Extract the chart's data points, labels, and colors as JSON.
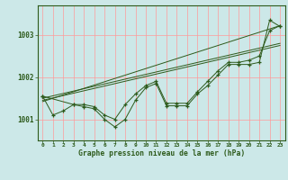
{
  "title": "Graphe pression niveau de la mer (hPa)",
  "bg_color": "#cce8e8",
  "grid_color": "#ff9999",
  "line_color": "#2d5a1b",
  "xlim": [
    -0.5,
    23.5
  ],
  "ylim": [
    1000.5,
    1003.7
  ],
  "yticks": [
    1001,
    1002,
    1003
  ],
  "xticks": [
    0,
    1,
    2,
    3,
    4,
    5,
    6,
    7,
    8,
    9,
    10,
    11,
    12,
    13,
    14,
    15,
    16,
    17,
    18,
    19,
    20,
    21,
    22,
    23
  ],
  "series1": [
    1001.55,
    1001.1,
    1001.2,
    1001.35,
    1001.3,
    1001.25,
    1001.0,
    1000.82,
    1001.0,
    1001.45,
    1001.75,
    1001.85,
    1001.32,
    1001.32,
    1001.32,
    1001.6,
    1001.8,
    1002.05,
    1002.3,
    1002.3,
    1002.3,
    1002.35,
    1003.35,
    1003.2
  ],
  "series2_x": [
    0,
    3,
    4,
    5,
    6,
    7,
    8,
    9,
    10,
    11,
    12,
    13,
    14,
    15,
    16,
    17,
    18,
    19,
    20,
    21,
    22,
    23
  ],
  "series2_y": [
    1001.55,
    1001.35,
    1001.35,
    1001.3,
    1001.1,
    1001.0,
    1001.35,
    1001.6,
    1001.8,
    1001.9,
    1001.38,
    1001.38,
    1001.38,
    1001.65,
    1001.9,
    1002.15,
    1002.35,
    1002.35,
    1002.4,
    1002.5,
    1003.1,
    1003.22
  ],
  "trend1_x": [
    0,
    23
  ],
  "trend1_y": [
    1001.5,
    1002.8
  ],
  "trend2_x": [
    0,
    23
  ],
  "trend2_y": [
    1001.45,
    1002.75
  ],
  "trend3_x": [
    0,
    23
  ],
  "trend3_y": [
    1001.42,
    1003.22
  ]
}
